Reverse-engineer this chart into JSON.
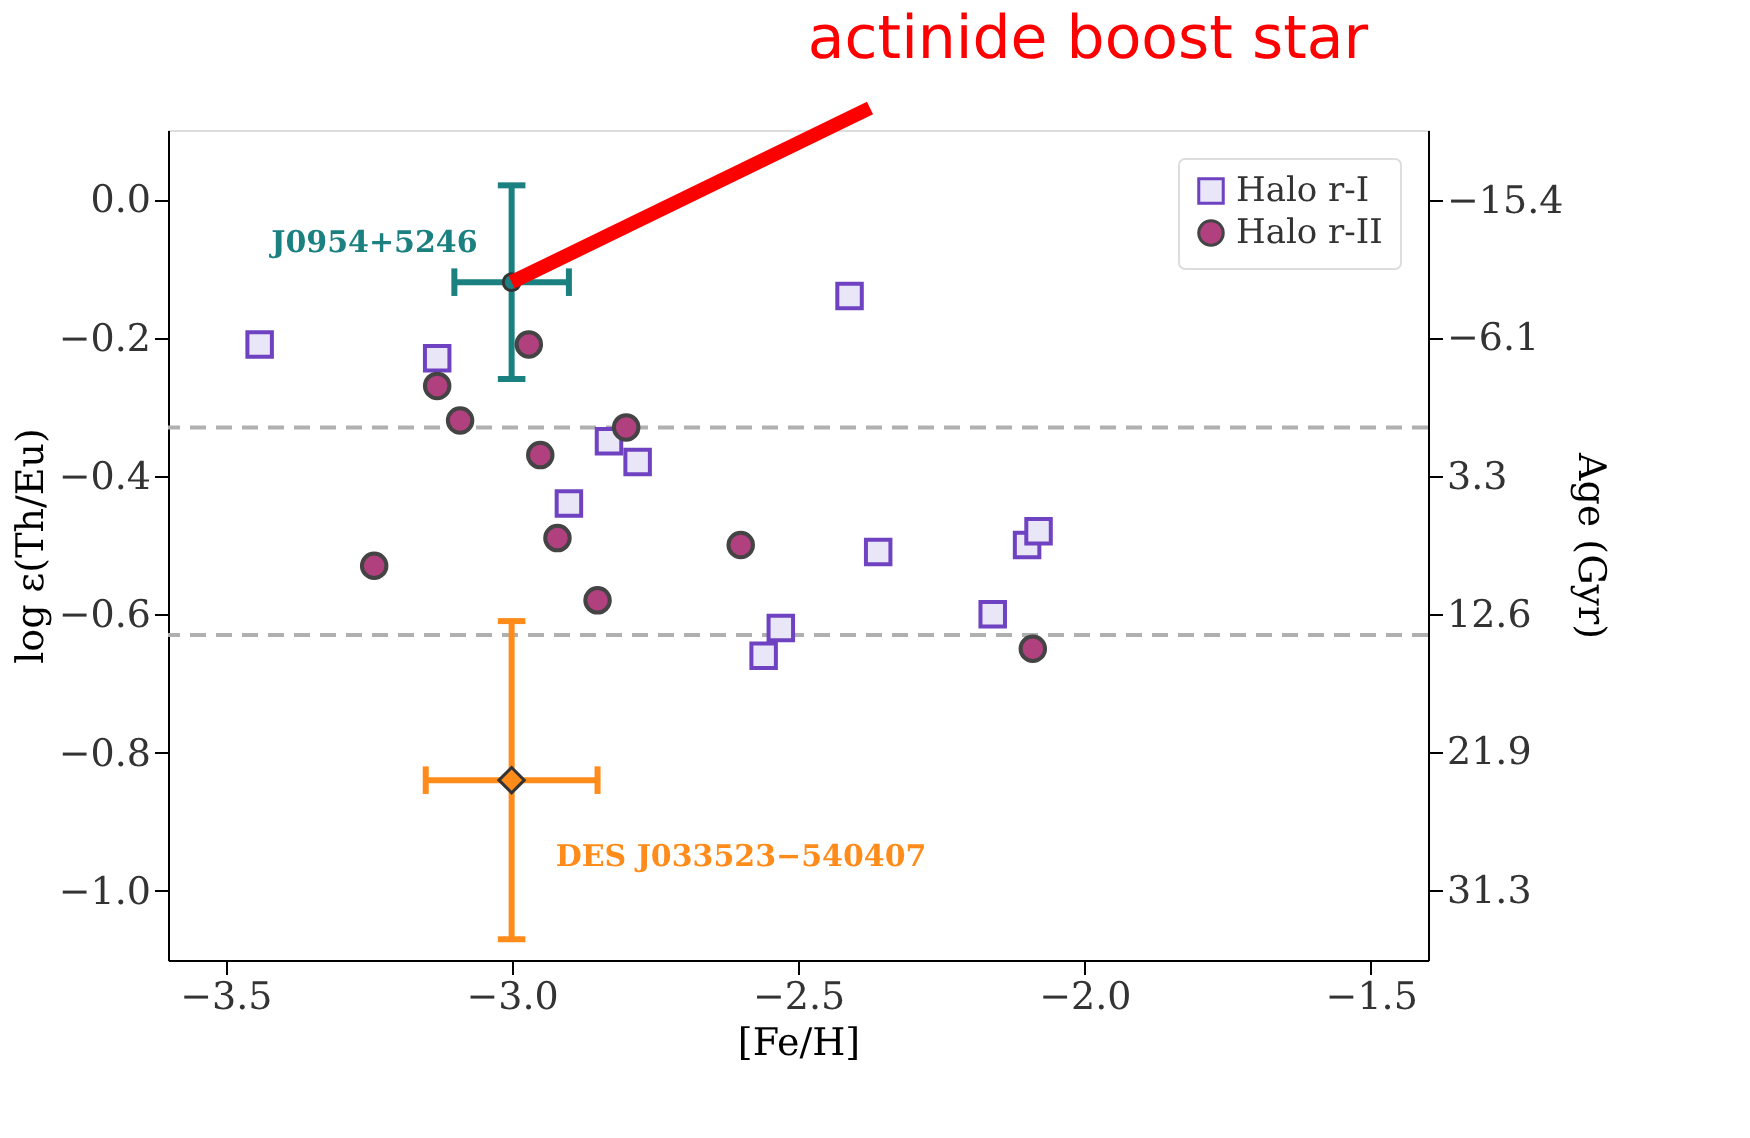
{
  "chart_data": {
    "type": "scatter",
    "xlabel": "[Fe/H]",
    "ylabel": "log ε(Th/Eu)",
    "y2label": "Age (Gyr)",
    "xlim": [
      -3.6,
      -1.4
    ],
    "xticks": [
      -3.5,
      {
        "value": -3.0,
        "label": "−3.0"
      },
      -2.5,
      {
        "value": -2.0,
        "label": "−2.0"
      },
      -1.5
    ],
    "ylim": [
      -1.1,
      0.1
    ],
    "yticks": [
      {
        "value": -1.0,
        "label": "−1.0"
      },
      -0.8,
      -0.6,
      -0.4,
      -0.2,
      {
        "value": 0.0,
        "label": "0.0"
      }
    ],
    "y2lim": [
      36.0,
      -20.1
    ],
    "y2ticks": [
      31.3,
      21.9,
      12.6,
      3.3,
      -6.1,
      -15.4
    ],
    "legend": "top right",
    "grid": false,
    "series": [
      {
        "name": "Halo r-I",
        "type": "scatter",
        "marker": "square",
        "color": "#6f42c1",
        "x": [
          -3.44,
          -3.13,
          -2.83,
          -2.78,
          -2.9,
          -2.41,
          -2.36,
          -2.1,
          -2.08,
          -2.56,
          -2.53,
          -2.16
        ],
        "values": [
          -0.21,
          -0.23,
          -0.35,
          -0.38,
          -0.44,
          -0.14,
          -0.51,
          -0.5,
          -0.48,
          -0.66,
          -0.62,
          -0.6
        ]
      },
      {
        "name": "Halo r-II",
        "type": "scatter",
        "marker": "circle",
        "color": "#b0407e",
        "x": [
          -2.97,
          -3.13,
          -3.09,
          -2.8,
          -2.95,
          -2.92,
          -3.24,
          -2.6,
          -2.85,
          -2.09
        ],
        "values": [
          -0.21,
          -0.27,
          -0.32,
          -0.33,
          -0.37,
          -0.49,
          -0.53,
          -0.5,
          -0.58,
          -0.65
        ]
      },
      {
        "name": "J0954+5246",
        "type": "scatter",
        "marker": "circle",
        "color": "#1a8080",
        "x": [
          -3.0
        ],
        "values": [
          -0.12
        ],
        "errors": [
          0.14
        ],
        "xerrors": [
          0.1
        ]
      },
      {
        "name": "DES J033523−540407",
        "type": "scatter",
        "marker": "diamond",
        "color": "#ff8c1a",
        "x": [
          -3.0
        ],
        "values": [
          -0.84
        ],
        "errors": [
          0.23
        ],
        "xerrors": [
          0.15
        ]
      }
    ],
    "ref_lines": [
      {
        "axis": "y",
        "value": -0.33,
        "color": "#b0b0b0",
        "line_style": "dashed"
      },
      {
        "axis": "y",
        "value": -0.63,
        "color": "#b0b0b0",
        "line_style": "dashed"
      }
    ],
    "annotations": [
      {
        "text": "actinide boost star",
        "x": -3.0,
        "y": -0.12
      }
    ]
  }
}
